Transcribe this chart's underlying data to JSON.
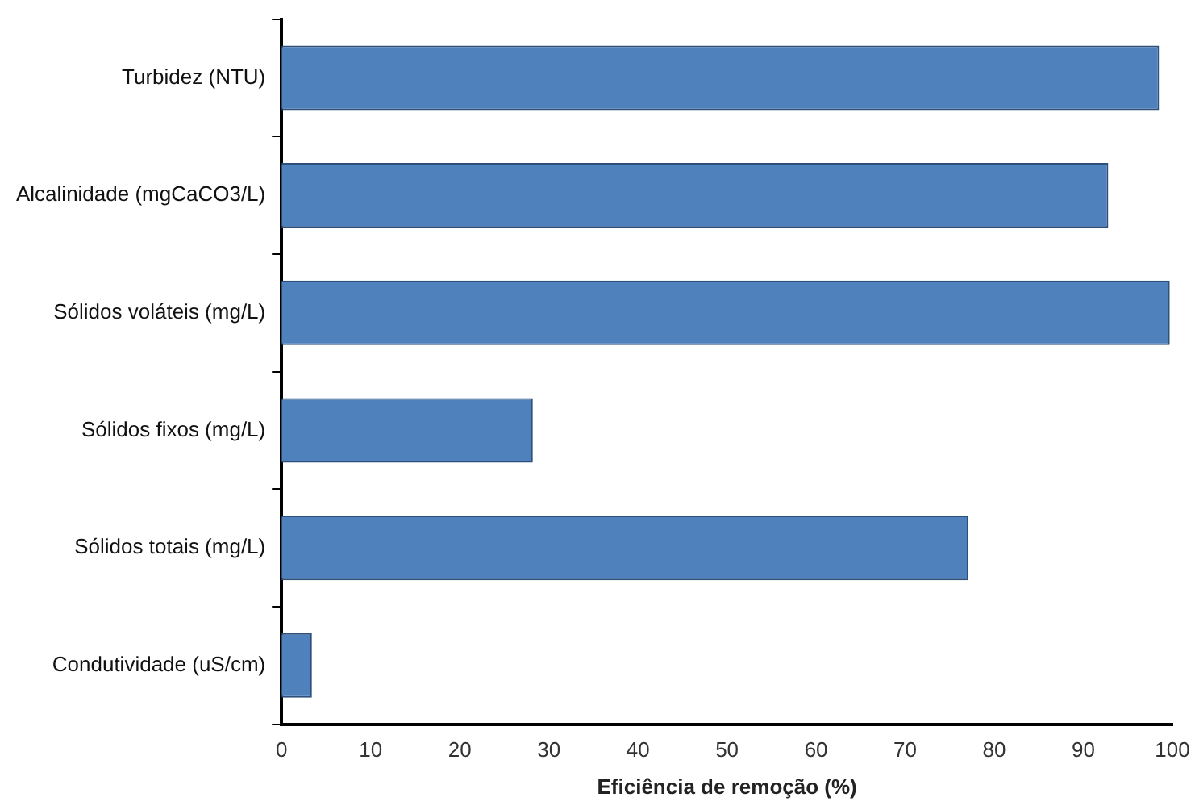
{
  "chart_data": {
    "type": "bar",
    "orientation": "horizontal",
    "xlabel": "Eficiência de remoção (%)",
    "categories": [
      "Turbidez (NTU)",
      "Alcalinidade (mgCaCO3/L)",
      "Sólidos voláteis (mg/L)",
      "Sólidos fixos (mg/L)",
      "Sólidos totais (mg/L)",
      "Condutividade (uS/cm)"
    ],
    "values": [
      98.5,
      92.8,
      99.7,
      28.2,
      77.1,
      3.4
    ],
    "color": "#4f81bd",
    "xlim": [
      0,
      100
    ],
    "xticks": [
      0,
      10,
      20,
      30,
      40,
      50,
      60,
      70,
      80,
      90,
      100
    ],
    "grid": false,
    "legend": false
  }
}
